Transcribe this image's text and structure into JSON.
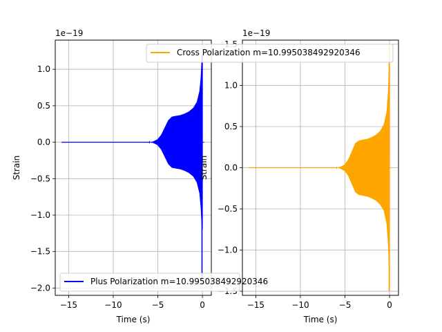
{
  "chart_data": [
    {
      "type": "line",
      "xlabel": "Time (s)",
      "ylabel": "Strain",
      "offset_text": "1e−19",
      "xlim": [
        -16.5,
        1.0
      ],
      "ylim": [
        -2.1,
        1.4
      ],
      "xticks": [
        -15,
        -10,
        -5,
        0
      ],
      "xtick_labels": [
        "−15",
        "−10",
        "−5",
        "0"
      ],
      "yticks": [
        -2.0,
        -1.5,
        -1.0,
        -0.5,
        0.0,
        0.5,
        1.0
      ],
      "ytick_labels": [
        "−2.0",
        "−1.5",
        "−1.0",
        "−0.5",
        "0.0",
        "0.5",
        "1.0"
      ],
      "grid": true,
      "legend_position": "lower-left",
      "series": [
        {
          "name": "Plus Polarization m=10.995038492920346",
          "color": "#0000ff",
          "t_start": -15.8,
          "t_end": 0.0,
          "envelope": [
            [
              -15.8,
              0.0
            ],
            [
              -6.0,
              0.0
            ],
            [
              -5.5,
              0.01
            ],
            [
              -5.0,
              0.04
            ],
            [
              -4.6,
              0.1
            ],
            [
              -4.2,
              0.2
            ],
            [
              -3.8,
              0.3
            ],
            [
              -3.4,
              0.35
            ],
            [
              -3.0,
              0.36
            ],
            [
              -2.5,
              0.37
            ],
            [
              -2.0,
              0.39
            ],
            [
              -1.5,
              0.42
            ],
            [
              -1.0,
              0.47
            ],
            [
              -0.6,
              0.55
            ],
            [
              -0.3,
              0.7
            ],
            [
              -0.15,
              0.9
            ],
            [
              -0.05,
              1.15
            ],
            [
              0.0,
              1.2
            ]
          ],
          "min_value": -1.95,
          "max_value": 1.2
        }
      ]
    },
    {
      "type": "line",
      "xlabel": "Time (s)",
      "ylabel": "Strain",
      "offset_text": "1e−19",
      "xlim": [
        -16.5,
        1.0
      ],
      "ylim": [
        -1.55,
        1.55
      ],
      "xticks": [
        -15,
        -10,
        -5,
        0
      ],
      "xtick_labels": [
        "−15",
        "−10",
        "−5",
        "0"
      ],
      "yticks": [
        -1.5,
        -1.0,
        -0.5,
        0.0,
        0.5,
        1.0,
        1.5
      ],
      "ytick_labels": [
        "−1.5",
        "−1.0",
        "−0.5",
        "0.0",
        "0.5",
        "1.0",
        "1.5"
      ],
      "grid": true,
      "legend_position": "top-center",
      "series": [
        {
          "name": "Cross Polarization m=10.995038492920346",
          "color": "#ffa500",
          "t_start": -15.8,
          "t_end": 0.0,
          "envelope": [
            [
              -15.8,
              0.0
            ],
            [
              -6.0,
              0.0
            ],
            [
              -5.5,
              0.01
            ],
            [
              -5.0,
              0.04
            ],
            [
              -4.6,
              0.1
            ],
            [
              -4.2,
              0.2
            ],
            [
              -3.8,
              0.3
            ],
            [
              -3.4,
              0.33
            ],
            [
              -3.0,
              0.34
            ],
            [
              -2.5,
              0.35
            ],
            [
              -2.0,
              0.37
            ],
            [
              -1.5,
              0.4
            ],
            [
              -1.0,
              0.45
            ],
            [
              -0.6,
              0.53
            ],
            [
              -0.3,
              0.68
            ],
            [
              -0.15,
              0.9
            ],
            [
              -0.05,
              1.2
            ],
            [
              0.0,
              1.5
            ]
          ],
          "min_value": -1.5,
          "max_value": 1.5
        }
      ]
    }
  ]
}
